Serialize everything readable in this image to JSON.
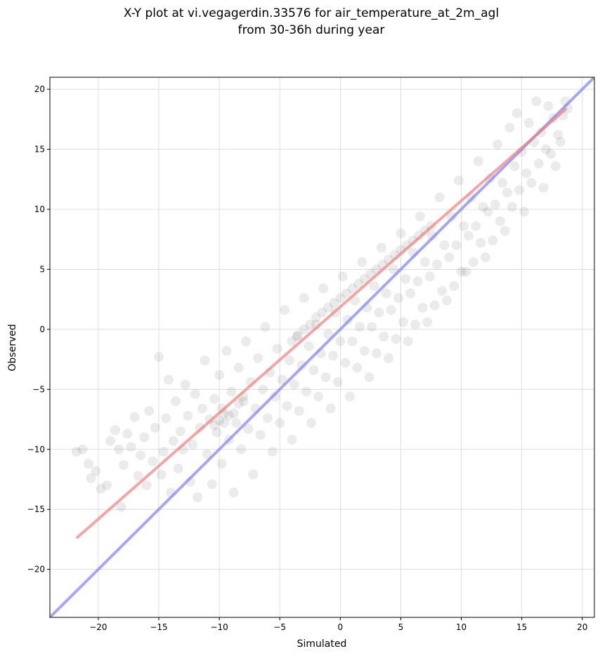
{
  "chart_data": {
    "type": "scatter",
    "title_line1": "X-Y plot at vi.vegagerdin.33576 for air_temperature_at_2m_agl",
    "title_line2": "from 30-36h during year",
    "xlabel": "Simulated",
    "ylabel": "Observed",
    "xlim": [
      -24,
      21
    ],
    "ylim": [
      -24,
      21
    ],
    "xticks": [
      -20,
      -15,
      -10,
      -5,
      0,
      5,
      10,
      15,
      20
    ],
    "yticks": [
      -20,
      -15,
      -10,
      -5,
      0,
      5,
      10,
      15,
      20
    ],
    "xtick_labels": [
      "−20",
      "−15",
      "−10",
      "−5",
      "0",
      "5",
      "10",
      "15",
      "20"
    ],
    "ytick_labels": [
      "−20",
      "−15",
      "−10",
      "−5",
      "0",
      "5",
      "10",
      "15",
      "20"
    ],
    "grid": true,
    "points_color": "#000000",
    "fit_line": {
      "color": "#f08080",
      "x": [
        -21.8,
        18.7
      ],
      "y": [
        -17.4,
        18.4
      ]
    },
    "identity_line": {
      "color": "#8080f0",
      "x": [
        -24,
        21
      ],
      "y": [
        -24,
        21
      ]
    },
    "points": [
      [
        -21.8,
        -10.2
      ],
      [
        -21.3,
        -10.0
      ],
      [
        -20.8,
        -11.2
      ],
      [
        -20.6,
        -12.4
      ],
      [
        -20.2,
        -11.8
      ],
      [
        -19.8,
        -13.3
      ],
      [
        -19.3,
        -13.0
      ],
      [
        -19.0,
        -9.3
      ],
      [
        -18.6,
        -8.4
      ],
      [
        -18.3,
        -10.0
      ],
      [
        -18.1,
        -14.8
      ],
      [
        -17.9,
        -11.3
      ],
      [
        -17.6,
        -8.7
      ],
      [
        -17.3,
        -9.8
      ],
      [
        -17.0,
        -7.3
      ],
      [
        -16.7,
        -12.2
      ],
      [
        -16.5,
        -10.5
      ],
      [
        -16.2,
        -9.0
      ],
      [
        -16.0,
        -13.0
      ],
      [
        -15.8,
        -6.8
      ],
      [
        -15.5,
        -11.0
      ],
      [
        -15.3,
        -8.2
      ],
      [
        -15.0,
        -2.3
      ],
      [
        -14.8,
        -12.1
      ],
      [
        -14.6,
        -10.2
      ],
      [
        -14.4,
        -7.4
      ],
      [
        -14.2,
        -4.2
      ],
      [
        -14.0,
        -13.6
      ],
      [
        -13.8,
        -9.3
      ],
      [
        -13.6,
        -6.0
      ],
      [
        -13.4,
        -11.6
      ],
      [
        -13.2,
        -8.5
      ],
      [
        -13.0,
        -10.0
      ],
      [
        -12.8,
        -4.6
      ],
      [
        -12.6,
        -7.2
      ],
      [
        -12.4,
        -12.7
      ],
      [
        -12.2,
        -9.6
      ],
      [
        -12.0,
        -5.4
      ],
      [
        -11.8,
        -14.0
      ],
      [
        -11.6,
        -8.2
      ],
      [
        -11.4,
        -6.6
      ],
      [
        -11.2,
        -2.6
      ],
      [
        -11.0,
        -10.4
      ],
      [
        -10.8,
        -7.5
      ],
      [
        -10.6,
        -12.9
      ],
      [
        -10.4,
        -5.8
      ],
      [
        -10.2,
        -8.6
      ],
      [
        -10.0,
        -3.8
      ],
      [
        -9.8,
        -11.2
      ],
      [
        -9.6,
        -7.0
      ],
      [
        -9.4,
        -1.8
      ],
      [
        -9.2,
        -9.2
      ],
      [
        -9.0,
        -5.2
      ],
      [
        -8.8,
        -13.6
      ],
      [
        -8.6,
        -7.8
      ],
      [
        -8.4,
        -3.2
      ],
      [
        -8.2,
        -10.0
      ],
      [
        -8.0,
        -6.0
      ],
      [
        -7.8,
        -1.0
      ],
      [
        -7.6,
        -8.3
      ],
      [
        -7.4,
        -4.4
      ],
      [
        -7.2,
        -12.1
      ],
      [
        -7.0,
        -6.6
      ],
      [
        -6.8,
        -2.4
      ],
      [
        -6.6,
        -8.8
      ],
      [
        -6.4,
        -5.0
      ],
      [
        -6.2,
        0.2
      ],
      [
        -6.0,
        -7.4
      ],
      [
        -5.8,
        -3.6
      ],
      [
        -5.6,
        -10.2
      ],
      [
        -5.4,
        -5.6
      ],
      [
        -5.2,
        -1.6
      ],
      [
        -5.0,
        -7.8
      ],
      [
        -4.8,
        -4.2
      ],
      [
        -4.6,
        1.6
      ],
      [
        -4.4,
        -6.4
      ],
      [
        -4.2,
        -2.6
      ],
      [
        -4.0,
        -9.2
      ],
      [
        -3.8,
        -4.6
      ],
      [
        -3.6,
        -0.6
      ],
      [
        -3.4,
        -6.8
      ],
      [
        -3.2,
        -3.0
      ],
      [
        -3.0,
        2.6
      ],
      [
        -2.8,
        -5.2
      ],
      [
        -2.6,
        -1.4
      ],
      [
        -2.4,
        -7.8
      ],
      [
        -2.2,
        -3.4
      ],
      [
        -2.0,
        0.4
      ],
      [
        -1.8,
        -5.6
      ],
      [
        -1.6,
        -2.0
      ],
      [
        -1.4,
        3.4
      ],
      [
        -1.2,
        -4.0
      ],
      [
        -1.0,
        -0.4
      ],
      [
        -0.8,
        -6.6
      ],
      [
        -0.6,
        -2.2
      ],
      [
        -0.4,
        1.4
      ],
      [
        -0.2,
        -4.4
      ],
      [
        0.0,
        -1.0
      ],
      [
        0.2,
        4.4
      ],
      [
        0.4,
        -2.8
      ],
      [
        0.6,
        0.8
      ],
      [
        0.8,
        -5.6
      ],
      [
        1.0,
        -1.0
      ],
      [
        1.2,
        2.4
      ],
      [
        1.4,
        -3.2
      ],
      [
        1.6,
        0.2
      ],
      [
        1.8,
        5.6
      ],
      [
        2.0,
        -1.8
      ],
      [
        2.2,
        1.8
      ],
      [
        2.4,
        -4.0
      ],
      [
        2.6,
        0.2
      ],
      [
        2.8,
        3.6
      ],
      [
        3.0,
        -2.0
      ],
      [
        3.2,
        1.4
      ],
      [
        3.4,
        6.8
      ],
      [
        3.6,
        -0.6
      ],
      [
        3.8,
        3.0
      ],
      [
        4.0,
        -2.4
      ],
      [
        4.2,
        1.6
      ],
      [
        4.4,
        5.0
      ],
      [
        4.6,
        -0.8
      ],
      [
        4.8,
        2.6
      ],
      [
        5.0,
        8.0
      ],
      [
        5.2,
        0.6
      ],
      [
        5.4,
        4.2
      ],
      [
        5.6,
        -1.0
      ],
      [
        5.8,
        3.0
      ],
      [
        6.0,
        6.4
      ],
      [
        6.2,
        0.4
      ],
      [
        6.4,
        4.0
      ],
      [
        6.6,
        9.4
      ],
      [
        6.8,
        1.8
      ],
      [
        7.0,
        5.6
      ],
      [
        7.2,
        0.6
      ],
      [
        7.4,
        4.4
      ],
      [
        7.6,
        7.8
      ],
      [
        7.8,
        2.0
      ],
      [
        8.0,
        5.4
      ],
      [
        8.2,
        11.0
      ],
      [
        8.4,
        3.2
      ],
      [
        8.6,
        7.0
      ],
      [
        8.8,
        2.4
      ],
      [
        9.0,
        6.0
      ],
      [
        9.2,
        9.4
      ],
      [
        9.4,
        3.6
      ],
      [
        9.6,
        7.0
      ],
      [
        9.8,
        12.4
      ],
      [
        10.0,
        4.8
      ],
      [
        10.2,
        8.6
      ],
      [
        10.4,
        4.8
      ],
      [
        10.6,
        7.8
      ],
      [
        10.8,
        11.0
      ],
      [
        11.0,
        5.6
      ],
      [
        11.2,
        8.6
      ],
      [
        11.4,
        14.0
      ],
      [
        11.6,
        7.2
      ],
      [
        11.8,
        10.2
      ],
      [
        12.0,
        6.0
      ],
      [
        12.2,
        9.8
      ],
      [
        12.4,
        12.6
      ],
      [
        12.6,
        7.4
      ],
      [
        12.8,
        10.4
      ],
      [
        13.0,
        15.4
      ],
      [
        13.2,
        9.0
      ],
      [
        13.4,
        12.2
      ],
      [
        13.6,
        8.2
      ],
      [
        13.8,
        11.4
      ],
      [
        14.0,
        16.8
      ],
      [
        14.2,
        10.2
      ],
      [
        14.4,
        13.6
      ],
      [
        14.6,
        18.0
      ],
      [
        14.8,
        11.6
      ],
      [
        15.0,
        14.8
      ],
      [
        15.2,
        9.8
      ],
      [
        15.4,
        13.0
      ],
      [
        15.6,
        17.2
      ],
      [
        15.8,
        12.2
      ],
      [
        16.0,
        15.6
      ],
      [
        16.2,
        19.0
      ],
      [
        16.4,
        13.8
      ],
      [
        16.6,
        16.4
      ],
      [
        16.8,
        11.8
      ],
      [
        17.0,
        15.0
      ],
      [
        17.2,
        18.6
      ],
      [
        17.4,
        14.6
      ],
      [
        17.6,
        17.6
      ],
      [
        17.8,
        13.6
      ],
      [
        18.0,
        16.2
      ],
      [
        18.2,
        15.6
      ],
      [
        18.4,
        17.8
      ],
      [
        18.6,
        19.0
      ],
      [
        18.8,
        18.4
      ],
      [
        -4.0,
        -1.0
      ],
      [
        -3.5,
        -0.5
      ],
      [
        -3.0,
        0.0
      ],
      [
        -2.5,
        0.4
      ],
      [
        -2.0,
        1.0
      ],
      [
        -1.5,
        1.4
      ],
      [
        -1.0,
        1.8
      ],
      [
        -0.5,
        2.2
      ],
      [
        0.0,
        2.6
      ],
      [
        0.5,
        3.0
      ],
      [
        1.0,
        3.4
      ],
      [
        1.5,
        3.8
      ],
      [
        2.0,
        4.2
      ],
      [
        2.5,
        4.6
      ],
      [
        3.0,
        5.0
      ],
      [
        3.5,
        5.4
      ],
      [
        4.0,
        5.8
      ],
      [
        4.5,
        6.2
      ],
      [
        5.0,
        6.6
      ],
      [
        5.5,
        7.0
      ],
      [
        6.0,
        7.4
      ],
      [
        6.5,
        7.8
      ],
      [
        7.0,
        8.2
      ],
      [
        7.5,
        8.6
      ],
      [
        -10.0,
        -7.6
      ],
      [
        -9.6,
        -7.8
      ],
      [
        -9.2,
        -7.2
      ],
      [
        -8.8,
        -7.0
      ],
      [
        -10.4,
        -8.0
      ],
      [
        -9.8,
        -6.6
      ],
      [
        -8.4,
        -6.2
      ],
      [
        -8.0,
        -5.6
      ]
    ]
  }
}
